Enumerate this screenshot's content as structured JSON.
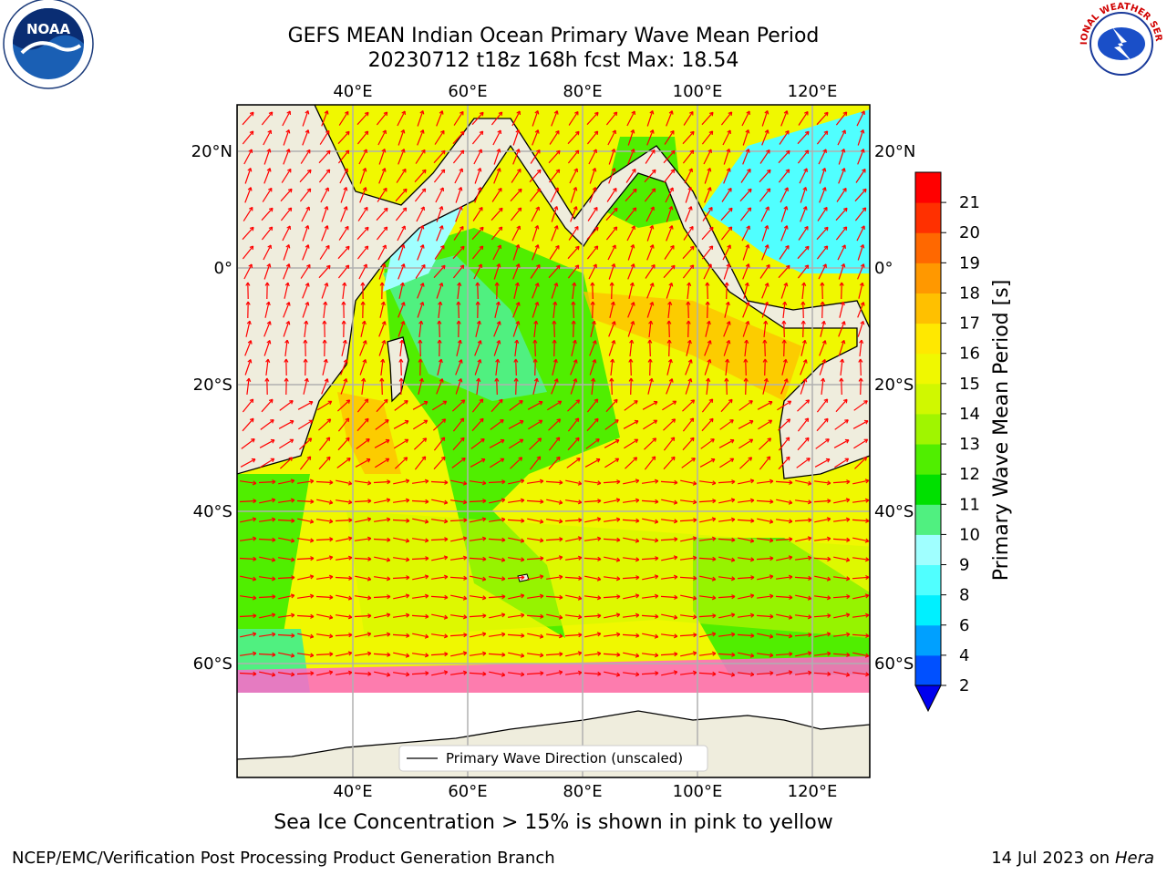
{
  "title": {
    "line1": "GEFS MEAN Indian Ocean Primary Wave Mean Period",
    "line2": "20230712 t18z 168h fcst   Max: 18.54"
  },
  "map": {
    "lon_ticks": [
      "40°E",
      "60°E",
      "80°E",
      "100°E",
      "120°E"
    ],
    "lat_ticks": [
      "20°N",
      "0°",
      "20°S",
      "40°S",
      "60°S"
    ],
    "legend_label": "Primary Wave Direction (unscaled)",
    "arrow_color": "#ff0000",
    "land_color": "#efeddd"
  },
  "colorbar": {
    "label": "Primary Wave Mean Period [s]",
    "ticks": [
      "2",
      "4",
      "6",
      "8",
      "9",
      "10",
      "11",
      "12",
      "13",
      "14",
      "15",
      "16",
      "17",
      "18",
      "19",
      "20",
      "21"
    ],
    "colors": [
      "#0050ff",
      "#00a0ff",
      "#00f0ff",
      "#50ffff",
      "#a0ffff",
      "#50f080",
      "#00e000",
      "#50ee00",
      "#a0f500",
      "#d0f800",
      "#f0f800",
      "#ffe800",
      "#ffc000",
      "#ff9800",
      "#ff6800",
      "#ff3000",
      "#ff0000"
    ],
    "under_color": "#0000ee"
  },
  "caption": "Sea Ice Concentration > 15% is shown in pink to yellow",
  "footer": {
    "left": "NCEP/EMC/Verification Post Processing Product Generation Branch",
    "right_prefix": "14 Jul 2023 on ",
    "right_host": "Hera"
  },
  "logos": {
    "noaa_text": "NOAA",
    "nws_text": "NATIONAL WEATHER SERVICE"
  }
}
